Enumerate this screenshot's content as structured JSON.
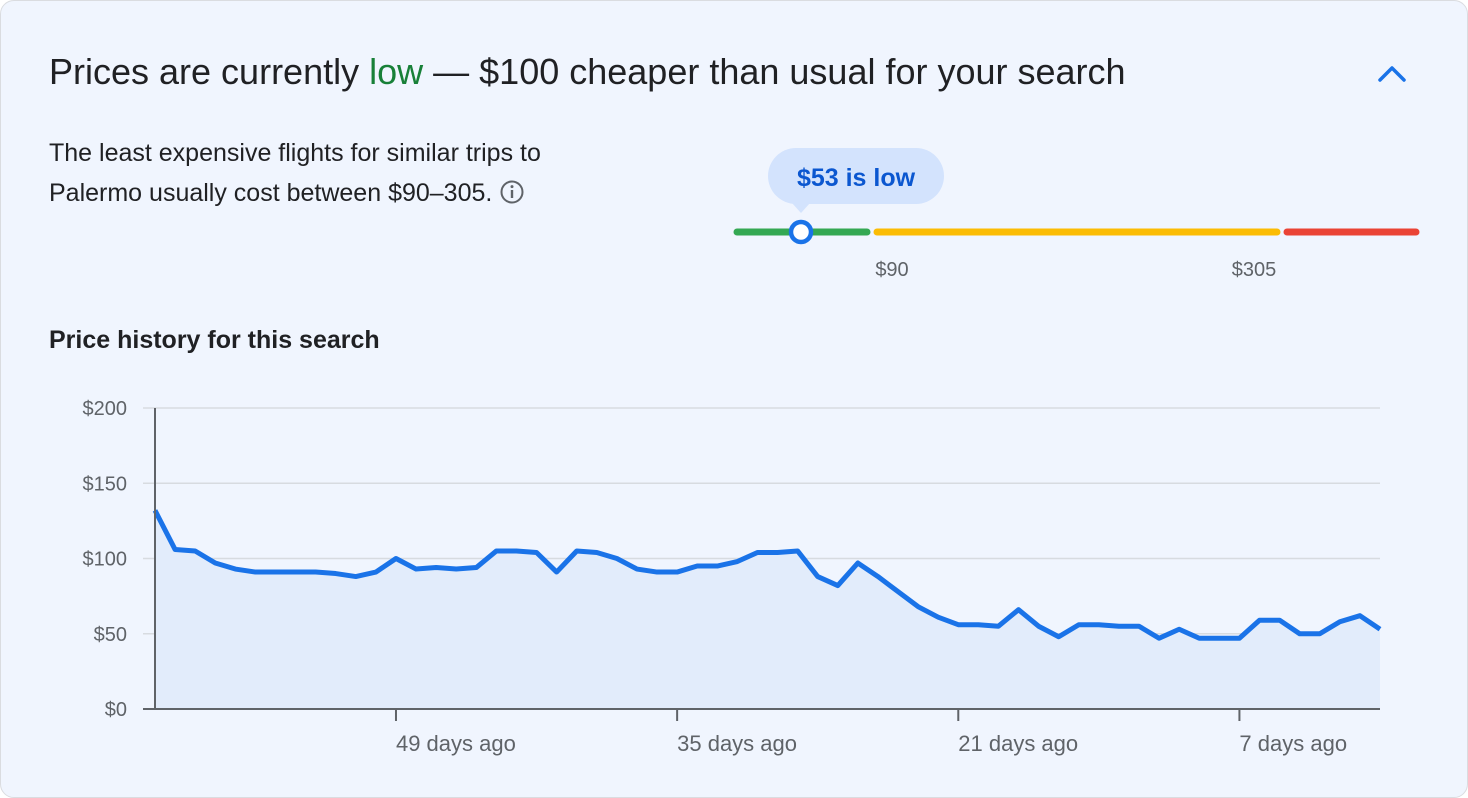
{
  "header": {
    "title_before": "Prices are currently ",
    "title_highlight": "low",
    "title_after": " — $100 cheaper than usual for your search"
  },
  "summary": {
    "text": "The least expensive flights for similar trips to Palermo usually cost between $90–305."
  },
  "price_gauge": {
    "current_label": "$53 is low",
    "low_threshold": "$90",
    "high_threshold": "$305"
  },
  "chart_data": {
    "type": "line",
    "title": "Price history for this search",
    "x": [
      61,
      60,
      59,
      58,
      57,
      56,
      55,
      54,
      53,
      52,
      51,
      50,
      49,
      48,
      47,
      46,
      45,
      44,
      43,
      42,
      41,
      40,
      39,
      38,
      37,
      36,
      35,
      34,
      33,
      32,
      31,
      30,
      29,
      28,
      27,
      26,
      25,
      24,
      23,
      22,
      21,
      20,
      19,
      18,
      17,
      16,
      15,
      14,
      13,
      12,
      11,
      10,
      9,
      8,
      7,
      6,
      5,
      4,
      3,
      2,
      1,
      0
    ],
    "series": [
      {
        "name": "Price",
        "color": "#1a73e8",
        "values": [
          132,
          106,
          105,
          97,
          93,
          91,
          91,
          91,
          91,
          90,
          88,
          91,
          100,
          93,
          94,
          93,
          94,
          105,
          105,
          104,
          91,
          105,
          104,
          100,
          93,
          91,
          91,
          95,
          95,
          98,
          104,
          104,
          105,
          88,
          82,
          97,
          88,
          78,
          68,
          61,
          56,
          56,
          55,
          66,
          55,
          48,
          56,
          56,
          55,
          55,
          47,
          53,
          47,
          47,
          47,
          59,
          59,
          50,
          50,
          58,
          62,
          53
        ]
      }
    ],
    "area": true,
    "area_color": "#e2ecfb",
    "xlim": [
      61,
      0
    ],
    "xticks": [
      {
        "value": 49,
        "label": "49 days ago"
      },
      {
        "value": 35,
        "label": "35 days ago"
      },
      {
        "value": 21,
        "label": "21 days ago"
      },
      {
        "value": 7,
        "label": "7 days ago"
      }
    ],
    "ylim": [
      0,
      200
    ],
    "yticks": [
      {
        "value": 0,
        "label": "$0"
      },
      {
        "value": 50,
        "label": "$50"
      },
      {
        "value": 100,
        "label": "$100"
      },
      {
        "value": 150,
        "label": "$150"
      },
      {
        "value": 200,
        "label": "$200"
      }
    ],
    "grid": true
  }
}
